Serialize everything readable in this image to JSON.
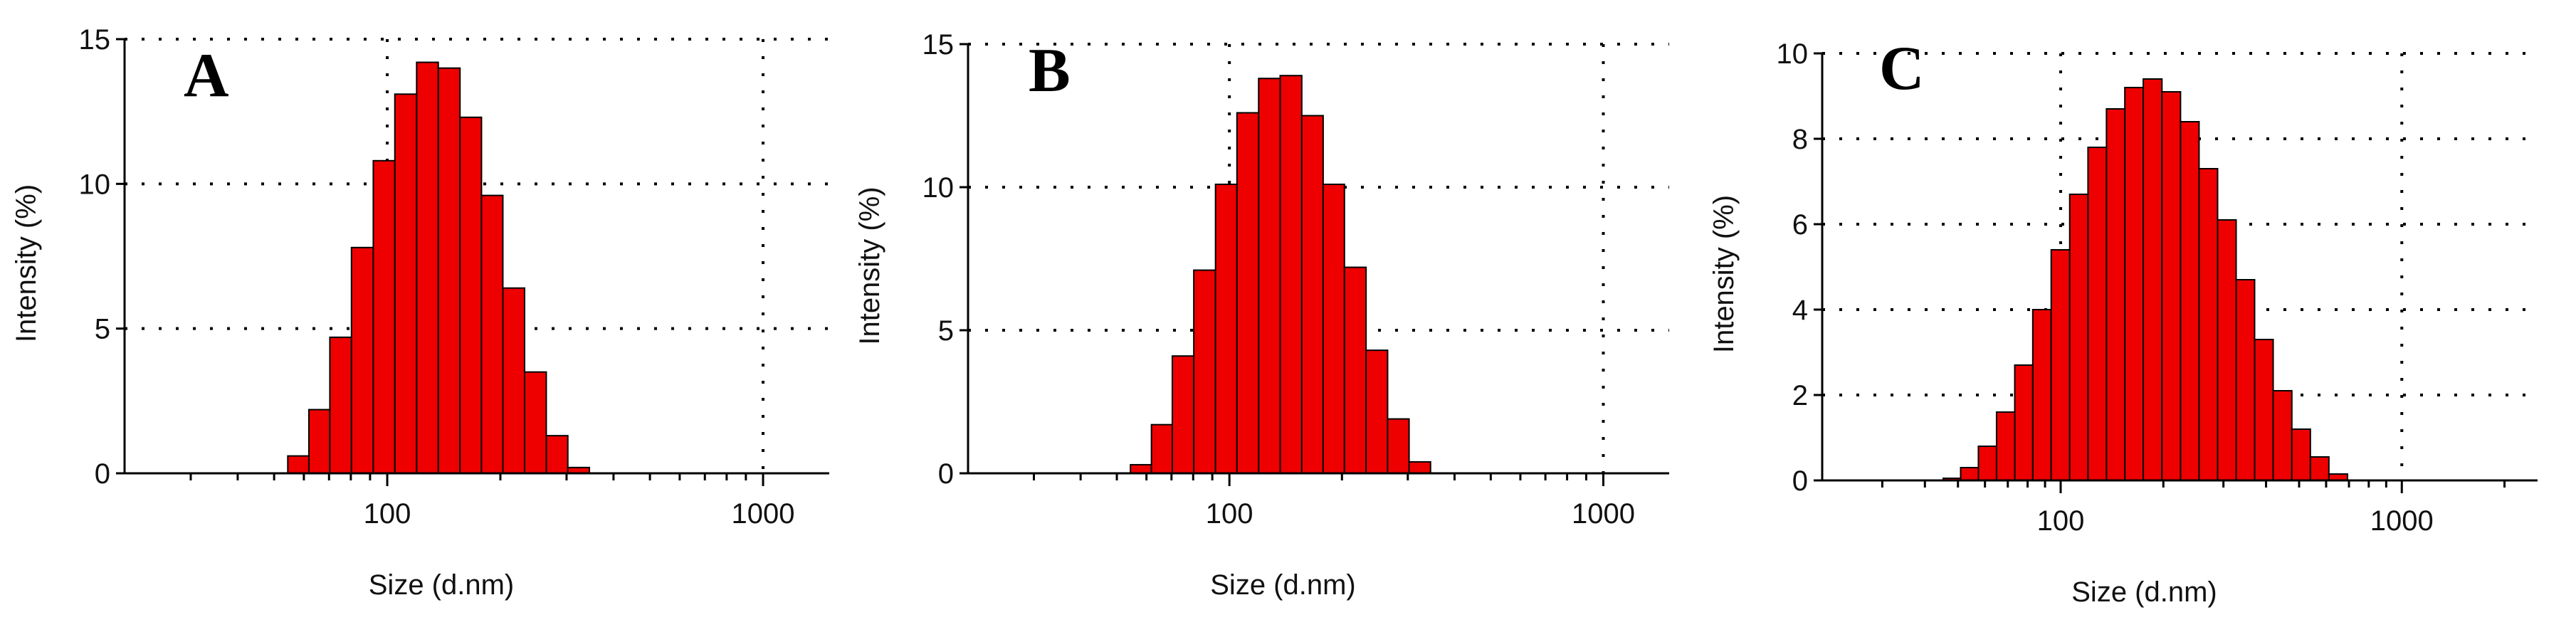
{
  "chart_data": [
    {
      "type": "bar",
      "panel_label": "A",
      "xlabel": "Size (d.nm)",
      "ylabel": "Intensity (%)",
      "x_scale": "log",
      "xlim": [
        20,
        1500
      ],
      "ylim": [
        0,
        15
      ],
      "yticks": [
        0,
        5,
        10,
        15
      ],
      "xtick_labels": [
        100,
        1000
      ],
      "grid": true,
      "bars": [
        {
          "x": 58,
          "y": 0.6
        },
        {
          "x": 66,
          "y": 2.2
        },
        {
          "x": 75,
          "y": 4.7
        },
        {
          "x": 86,
          "y": 7.8
        },
        {
          "x": 98,
          "y": 10.8
        },
        {
          "x": 112,
          "y": 13.1
        },
        {
          "x": 128,
          "y": 14.2
        },
        {
          "x": 146,
          "y": 14.0
        },
        {
          "x": 167,
          "y": 12.3
        },
        {
          "x": 190,
          "y": 9.6
        },
        {
          "x": 217,
          "y": 6.4
        },
        {
          "x": 248,
          "y": 3.5
        },
        {
          "x": 283,
          "y": 1.3
        },
        {
          "x": 323,
          "y": 0.2
        }
      ]
    },
    {
      "type": "bar",
      "panel_label": "B",
      "xlabel": "Size (d.nm)",
      "ylabel": "Intensity (%)",
      "x_scale": "log",
      "xlim": [
        20,
        1500
      ],
      "ylim": [
        0,
        15
      ],
      "yticks": [
        0,
        5,
        10,
        15
      ],
      "xtick_labels": [
        100,
        1000
      ],
      "grid": true,
      "bars": [
        {
          "x": 58,
          "y": 0.3
        },
        {
          "x": 66,
          "y": 1.7
        },
        {
          "x": 75,
          "y": 4.1
        },
        {
          "x": 86,
          "y": 7.1
        },
        {
          "x": 98,
          "y": 10.1
        },
        {
          "x": 112,
          "y": 12.6
        },
        {
          "x": 128,
          "y": 13.8
        },
        {
          "x": 146,
          "y": 13.9
        },
        {
          "x": 167,
          "y": 12.5
        },
        {
          "x": 190,
          "y": 10.1
        },
        {
          "x": 217,
          "y": 7.2
        },
        {
          "x": 248,
          "y": 4.3
        },
        {
          "x": 283,
          "y": 1.9
        },
        {
          "x": 323,
          "y": 0.4
        }
      ]
    },
    {
      "type": "bar",
      "panel_label": "C",
      "xlabel": "Size (d.nm)",
      "ylabel": "Intensity (%)",
      "x_scale": "log",
      "xlim": [
        20,
        2500
      ],
      "ylim": [
        0,
        10
      ],
      "yticks": [
        0,
        2,
        4,
        6,
        8,
        10
      ],
      "xtick_labels": [
        100,
        1000
      ],
      "grid": true,
      "bars": [
        {
          "x": 48,
          "y": 0.05
        },
        {
          "x": 54,
          "y": 0.3
        },
        {
          "x": 61,
          "y": 0.8
        },
        {
          "x": 69,
          "y": 1.6
        },
        {
          "x": 78,
          "y": 2.7
        },
        {
          "x": 88,
          "y": 4.0
        },
        {
          "x": 100,
          "y": 5.4
        },
        {
          "x": 113,
          "y": 6.7
        },
        {
          "x": 128,
          "y": 7.8
        },
        {
          "x": 145,
          "y": 8.7
        },
        {
          "x": 164,
          "y": 9.2
        },
        {
          "x": 186,
          "y": 9.4
        },
        {
          "x": 211,
          "y": 9.1
        },
        {
          "x": 239,
          "y": 8.4
        },
        {
          "x": 271,
          "y": 7.3
        },
        {
          "x": 307,
          "y": 6.1
        },
        {
          "x": 348,
          "y": 4.7
        },
        {
          "x": 394,
          "y": 3.3
        },
        {
          "x": 447,
          "y": 2.1
        },
        {
          "x": 507,
          "y": 1.2
        },
        {
          "x": 574,
          "y": 0.55
        },
        {
          "x": 651,
          "y": 0.15
        }
      ]
    }
  ]
}
